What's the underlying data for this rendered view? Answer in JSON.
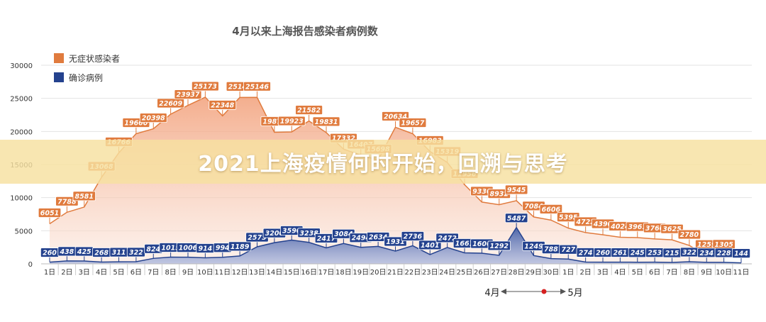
{
  "chart_data": {
    "type": "area",
    "title": "4月以来上海报告感染者病例数",
    "ylim": [
      0,
      30000
    ],
    "yticks": [
      0,
      5000,
      10000,
      15000,
      20000,
      25000,
      30000
    ],
    "categories": [
      "1日",
      "2日",
      "3日",
      "4日",
      "5日",
      "6日",
      "7日",
      "8日",
      "9日",
      "10日",
      "11日",
      "12日",
      "13日",
      "14日",
      "15日",
      "16日",
      "17日",
      "18日",
      "19日",
      "20日",
      "21日",
      "22日",
      "23日",
      "24日",
      "25日",
      "26日",
      "27日",
      "28日",
      "29日",
      "30日",
      "1日",
      "2日",
      "3日",
      "4日",
      "5日",
      "6日",
      "7日",
      "8日",
      "9日",
      "10日",
      "11日"
    ],
    "legend": "top-left",
    "series": [
      {
        "name": "无症状感染者",
        "color": "#e07b3e",
        "values": [
          6051,
          7788,
          8581,
          13068,
          16766,
          19660,
          20398,
          22609,
          23937,
          25173,
          22348,
          25141,
          25146,
          19872,
          19923,
          21582,
          19831,
          17332,
          16407,
          15698,
          20634,
          19657,
          16983,
          15319,
          11956,
          9330,
          8932,
          9545,
          7084,
          6606,
          5395,
          4722,
          4390,
          4024,
          3961,
          3760,
          3625,
          2780,
          1259,
          1305,
          null
        ]
      },
      {
        "name": "确诊病例",
        "color": "#24428e",
        "values": [
          260,
          438,
          425,
          268,
          311,
          322,
          824,
          1015,
          1006,
          914,
          994,
          1189,
          2573,
          3200,
          3590,
          3238,
          2417,
          3084,
          2494,
          2634,
          1931,
          2736,
          1401,
          2472,
          1661,
          1606,
          1292,
          5487,
          1249,
          788,
          727,
          274,
          260,
          261,
          245,
          253,
          215,
          322,
          234,
          228,
          144
        ]
      }
    ],
    "month_labels": [
      "4月",
      "5月"
    ],
    "banner": "2021上海疫情何时开始，回溯与思考"
  }
}
